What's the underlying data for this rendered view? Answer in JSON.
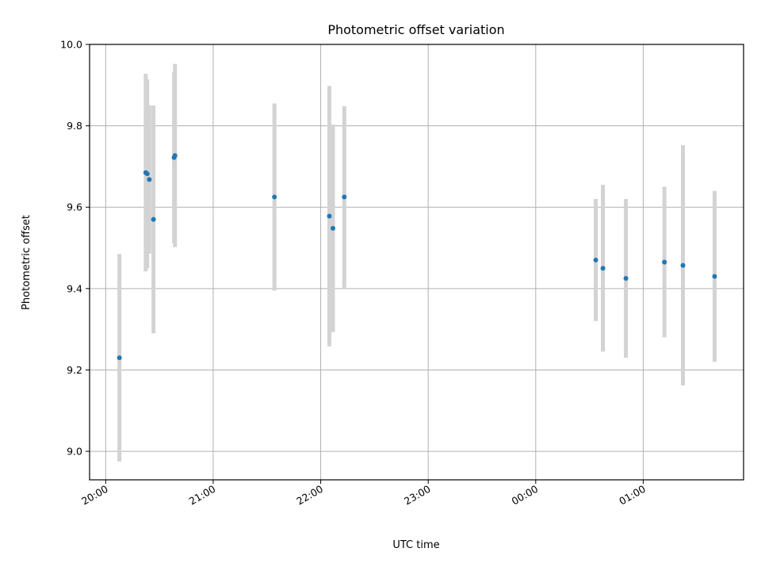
{
  "chart_data": {
    "type": "scatter",
    "title": "Photometric offset variation",
    "xlabel": "UTC time",
    "ylabel": "Photometric offset",
    "x_ticks": [
      "20:00",
      "21:00",
      "22:00",
      "23:00",
      "00:00",
      "01:00"
    ],
    "y_ticks": [
      "9.0",
      "9.2",
      "9.4",
      "9.6",
      "9.8",
      "10.0"
    ],
    "x_range": [
      "19:51",
      "01:56 (+1 day)"
    ],
    "ylim": [
      8.93,
      10.0
    ],
    "grid": true,
    "marker_color": "#1f77b4",
    "errorbar_color": "#d3d3d3",
    "points": [
      {
        "time": "20:07:40",
        "y": 9.23,
        "err": 0.255
      },
      {
        "time": "20:22:20",
        "y": 9.685,
        "err": 0.243
      },
      {
        "time": "20:23:10",
        "y": 9.682,
        "err": 0.232
      },
      {
        "time": "20:24:20",
        "y": 9.668,
        "err": 0.182
      },
      {
        "time": "20:26:40",
        "y": 9.57,
        "err": 0.28
      },
      {
        "time": "20:38:10",
        "y": 9.722,
        "err": 0.21
      },
      {
        "time": "20:38:40",
        "y": 9.727,
        "err": 0.225
      },
      {
        "time": "21:34:10",
        "y": 9.625,
        "err": 0.23
      },
      {
        "time": "22:04:50",
        "y": 9.578,
        "err": 0.32
      },
      {
        "time": "22:06:50",
        "y": 9.548,
        "err": 0.255
      },
      {
        "time": "22:13:10",
        "y": 9.625,
        "err": 0.223
      },
      {
        "time": "00:33:30",
        "y": 9.47,
        "err": 0.15
      },
      {
        "time": "00:37:30",
        "y": 9.45,
        "err": 0.205
      },
      {
        "time": "00:50:20",
        "y": 9.425,
        "err": 0.195
      },
      {
        "time": "01:11:50",
        "y": 9.465,
        "err": 0.185
      },
      {
        "time": "01:22:10",
        "y": 9.457,
        "err": 0.295
      },
      {
        "time": "01:39:50",
        "y": 9.43,
        "err": 0.21
      }
    ]
  }
}
